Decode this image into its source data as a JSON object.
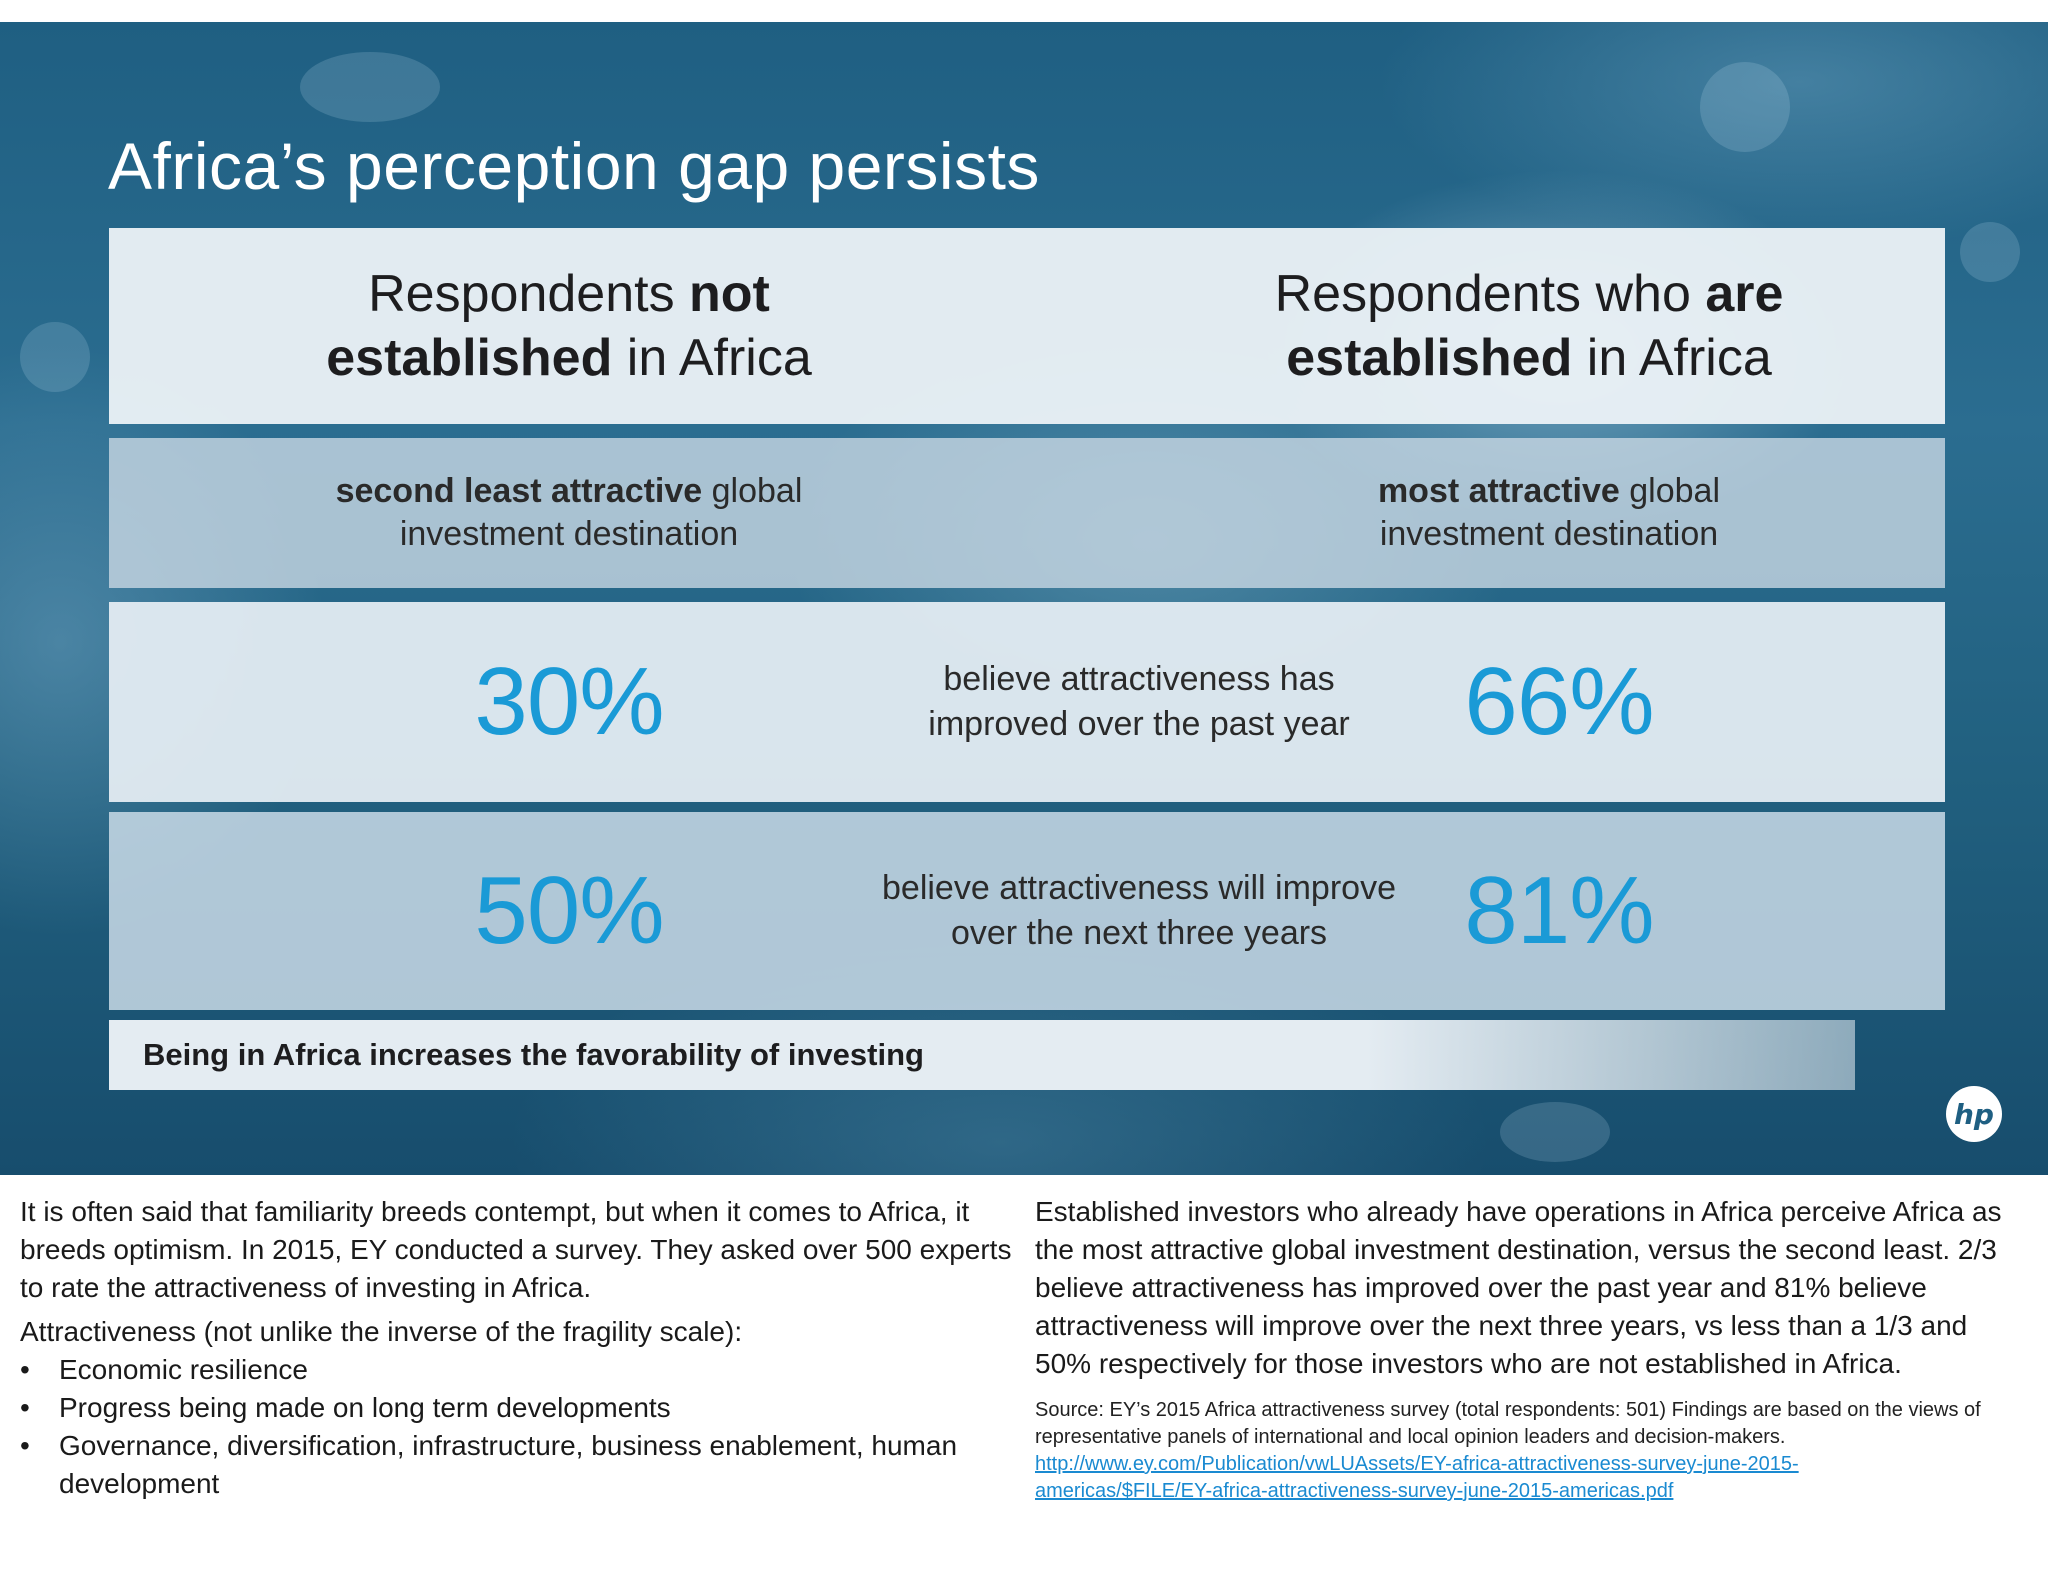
{
  "slide": {
    "title": "Africa’s perception gap persists",
    "header": {
      "left": {
        "line1_a": "Respondents ",
        "line1_b": "not",
        "line2_a": "established",
        "line2_b": " in Africa"
      },
      "right": {
        "line1_a": "Respondents who ",
        "line1_b": "are",
        "line2_a": "established",
        "line2_b": " in Africa"
      }
    },
    "rank_row": {
      "left_bold": "second least attractive",
      "left_rest1": " global",
      "left_line2": "investment destination",
      "right_bold": "most attractive",
      "right_rest1": " global",
      "right_line2": "investment destination"
    },
    "stats": [
      {
        "left_value": "30%",
        "label_line1": "believe attractiveness has",
        "label_line2": "improved over the past year",
        "right_value": "66%"
      },
      {
        "left_value": "50%",
        "label_line1": "believe attractiveness will improve",
        "label_line2": "over the next three years",
        "right_value": "81%"
      }
    ],
    "footer": "Being in Africa increases the favorability of investing",
    "logo_text": "hp",
    "accent_color": "#1a9ad6"
  },
  "notes": {
    "left": {
      "para1": "It is often said that familiarity breeds contempt, but when it comes to Africa, it breeds optimism. In 2015, EY conducted a survey.  They asked over 500 experts to rate the attractiveness of investing in Africa.",
      "para2": "Attractiveness (not unlike the inverse of the fragility scale):",
      "bullets": [
        "Economic resilience",
        "Progress being made on long term developments",
        "Governance, diversification, infrastructure, business enablement, human development"
      ],
      "bullet_char": "•"
    },
    "right": {
      "para": "Established investors who already have operations in Africa perceive Africa as the most attractive global investment destination, versus the second least. 2/3 believe attractiveness has improved over the past year and 81% believe attractiveness will improve over the next three years, vs less than a 1/3 and 50% respectively for those investors who are not established in Africa.",
      "source": "Source: EY’s 2015 Africa attractiveness survey (total respondents: 501) Findings are based on the views of representative panels of international and local opinion leaders and decision-makers.",
      "link_line1": "http://www.ey.com/Publication/vwLUAssets/EY-africa-attractiveness-survey-june-2015-",
      "link_line2": "americas/$FILE/EY-africa-attractiveness-survey-june-2015-americas.pdf",
      "link_color": "#1a8ad1"
    }
  }
}
